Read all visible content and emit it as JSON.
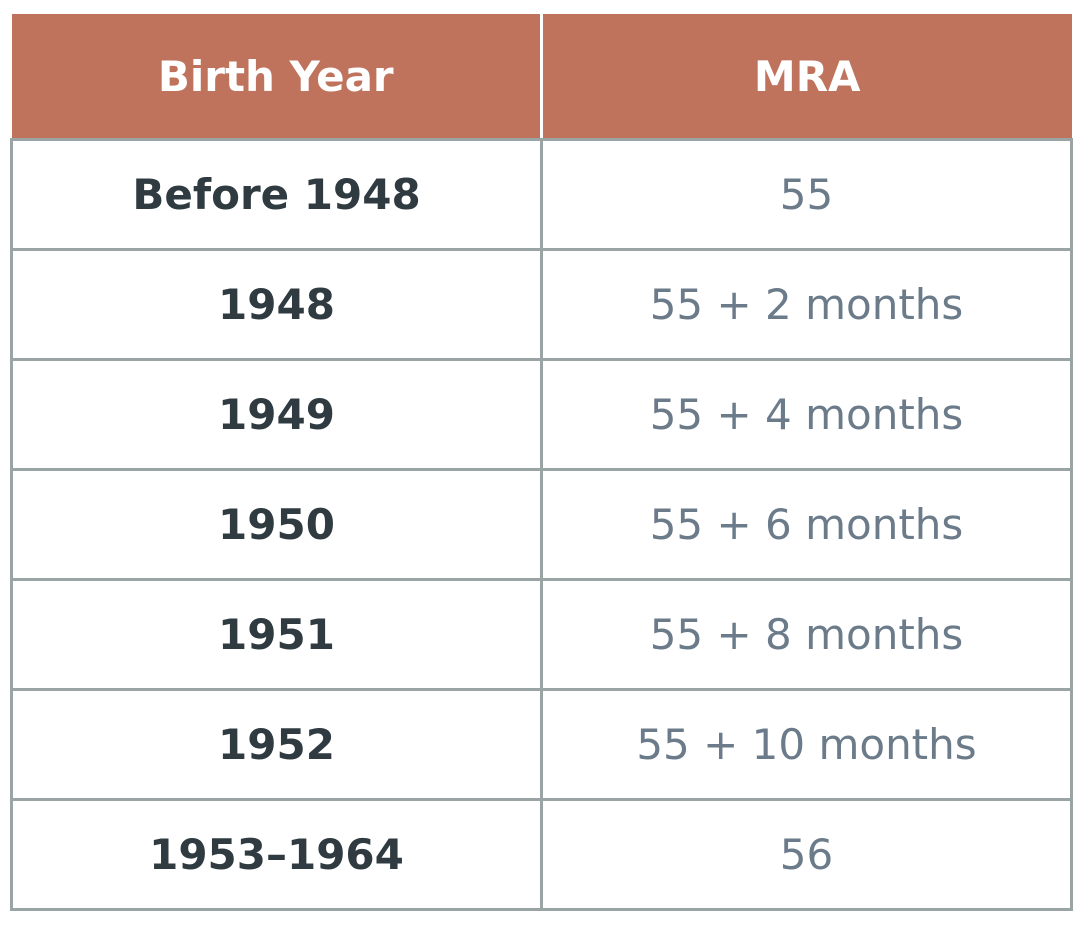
{
  "table": {
    "headers": [
      "Birth Year",
      "MRA"
    ],
    "rows": [
      {
        "birth_year": "Before 1948",
        "mra": "55"
      },
      {
        "birth_year": "1948",
        "mra": "55 + 2 months"
      },
      {
        "birth_year": "1949",
        "mra": "55 + 4 months"
      },
      {
        "birth_year": "1950",
        "mra": "55 + 6 months"
      },
      {
        "birth_year": "1951",
        "mra": "55 + 8 months"
      },
      {
        "birth_year": "1952",
        "mra": "55 + 10 months"
      },
      {
        "birth_year": "1953–1964",
        "mra": "56"
      }
    ]
  },
  "colors": {
    "header_bg": "#bf735c",
    "header_text": "#ffffff",
    "year_text": "#2f3b40",
    "mra_text": "#6b7b8a",
    "grid": "#9aa4a4"
  }
}
